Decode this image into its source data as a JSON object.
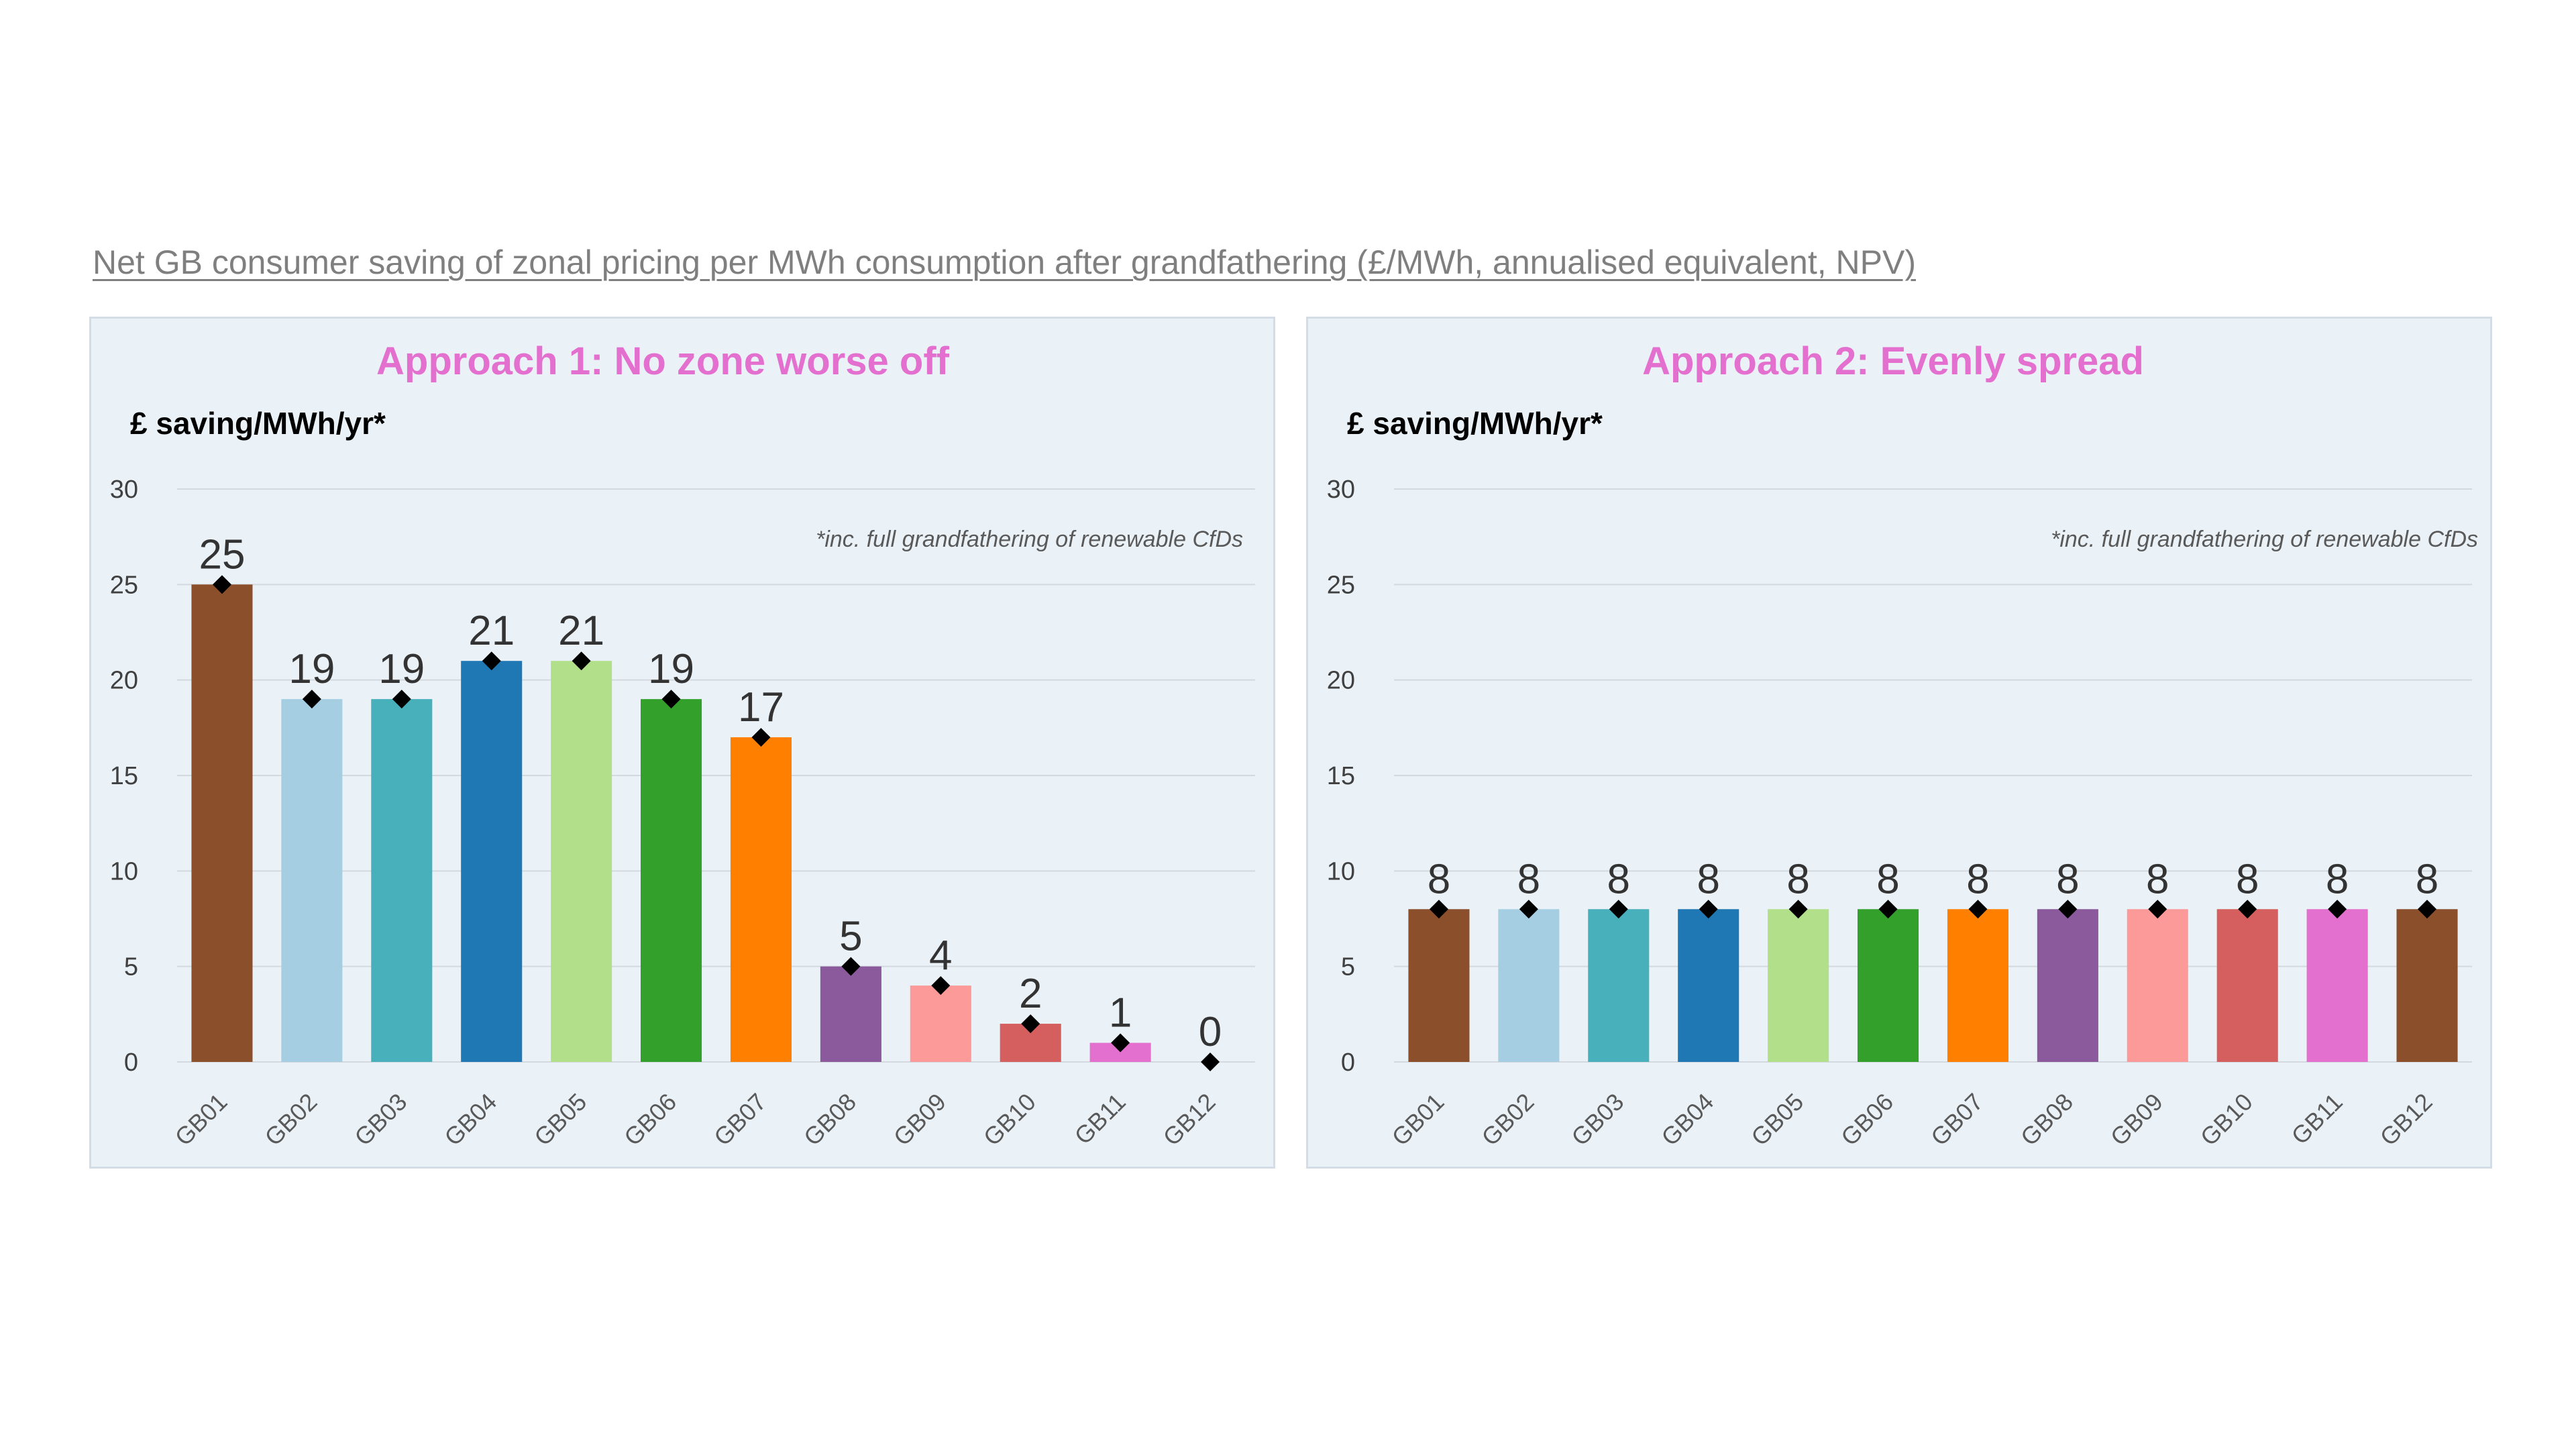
{
  "page_title": "Net GB consumer saving of zonal pricing per MWh consumption after grandfathering (£/MWh, annualised equivalent, NPV)",
  "chart_data": [
    {
      "type": "bar",
      "title": "Approach 1: No zone worse off",
      "ylabel": "£ saving/MWh/yr*",
      "xlabel": "",
      "note": "*inc. full grandfathering of renewable CfDs",
      "ylim": [
        0,
        30
      ],
      "yticks": [
        0,
        5,
        10,
        15,
        20,
        25,
        30
      ],
      "grid": true,
      "categories": [
        "GB01",
        "GB02",
        "GB03",
        "GB04",
        "GB05",
        "GB06",
        "GB07",
        "GB08",
        "GB09",
        "GB10",
        "GB11",
        "GB12"
      ],
      "values": [
        25,
        19,
        19,
        21,
        21,
        19,
        17,
        5,
        4,
        2,
        1,
        0
      ],
      "colors": [
        "#8c4f2b",
        "#a6cee3",
        "#47b0bb",
        "#1f78b4",
        "#b2df8a",
        "#33a02c",
        "#ff7f00",
        "#8b5a9c",
        "#fb9a99",
        "#d55e5e",
        "#e36fce",
        "#8c4f2b"
      ],
      "marker": "diamond"
    },
    {
      "type": "bar",
      "title": "Approach 2: Evenly spread",
      "ylabel": "£ saving/MWh/yr*",
      "xlabel": "",
      "note": "*inc. full grandfathering of renewable CfDs",
      "ylim": [
        0,
        30
      ],
      "yticks": [
        0,
        5,
        10,
        15,
        20,
        25,
        30
      ],
      "grid": true,
      "categories": [
        "GB01",
        "GB02",
        "GB03",
        "GB04",
        "GB05",
        "GB06",
        "GB07",
        "GB08",
        "GB09",
        "GB10",
        "GB11",
        "GB12"
      ],
      "values": [
        8,
        8,
        8,
        8,
        8,
        8,
        8,
        8,
        8,
        8,
        8,
        8
      ],
      "colors": [
        "#8c4f2b",
        "#a6cee3",
        "#47b0bb",
        "#1f78b4",
        "#b2df8a",
        "#33a02c",
        "#ff7f00",
        "#8b5a9c",
        "#fb9a99",
        "#d55e5e",
        "#e36fce",
        "#8c4f2b"
      ],
      "marker": "diamond"
    }
  ]
}
